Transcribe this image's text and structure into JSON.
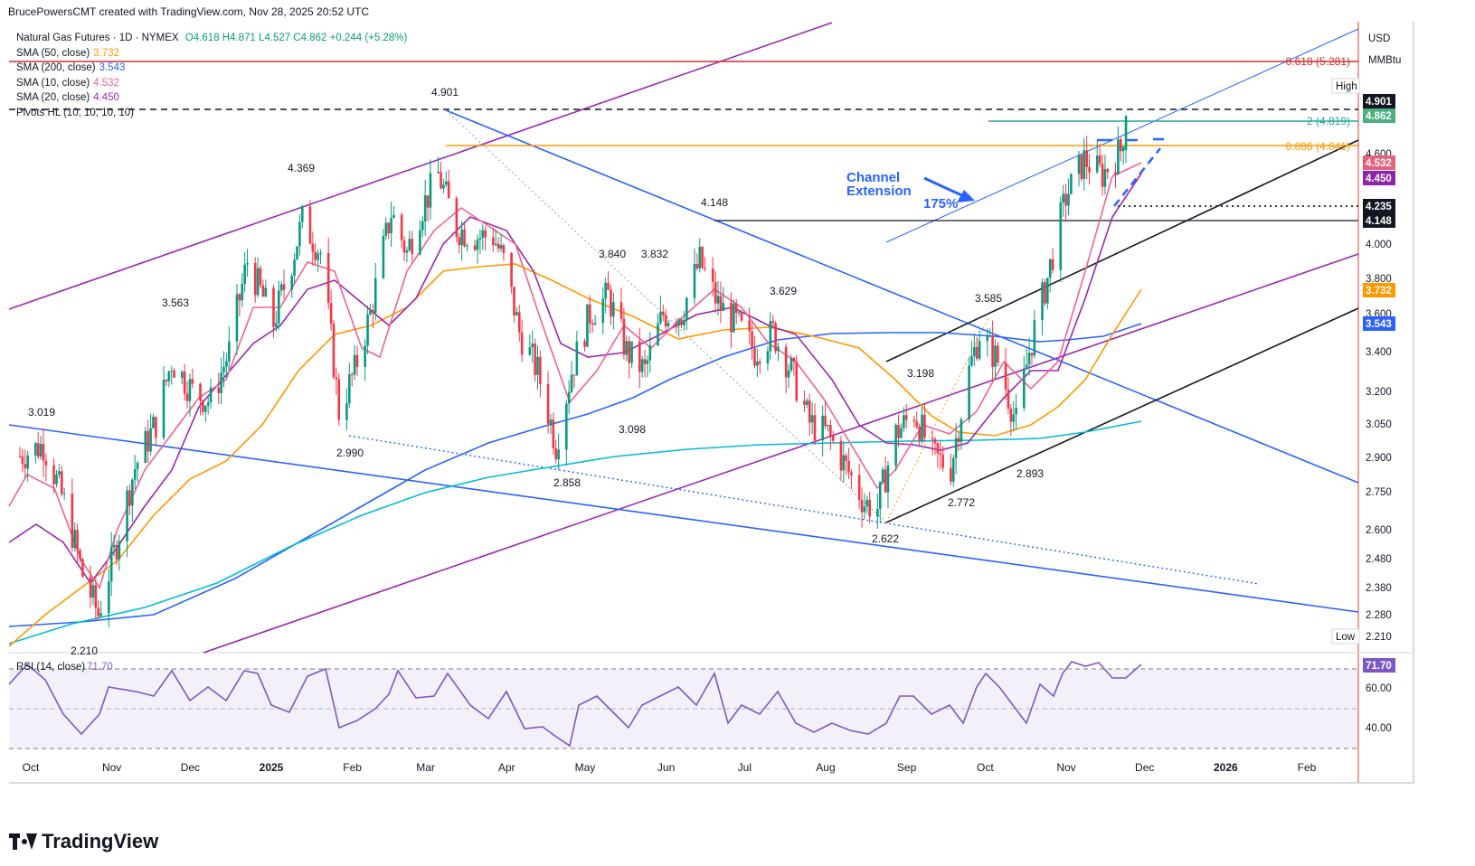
{
  "header": {
    "author_line": "BrucePowersCMT created with TradingView.com, Nov 28, 2025 20:52 UTC"
  },
  "legend": {
    "symbol_line": "Natural Gas Futures · 1D · NYMEX",
    "ohlc": "O4.618 H4.871 L4.527 C4.862 +0.244 (+5.28%)",
    "sma50": {
      "label": "SMA (50, close)",
      "value": "3.732",
      "color": "#ff9800"
    },
    "sma200": {
      "label": "SMA (200, close)",
      "value": "3.543",
      "color": "#2962ff"
    },
    "sma10": {
      "label": "SMA (10, close)",
      "value": "4.532",
      "color": "#f06292"
    },
    "sma20": {
      "label": "SMA (20, close)",
      "value": "4.450",
      "color": "#9c27b0"
    },
    "pivots": "Pivots HL (10, 10, 10, 10)"
  },
  "price_axis": {
    "unit1": "USD",
    "unit2": "MMBtu",
    "ticks": [
      "4.600",
      "4.000",
      "3.800",
      "3.600",
      "3.400",
      "3.200",
      "3.050",
      "2.900",
      "2.750",
      "2.600",
      "2.480",
      "2.380",
      "2.280"
    ],
    "badges": [
      {
        "text": "High",
        "kind": "plain"
      },
      {
        "text": "4.901",
        "kind": "dark",
        "color": "#131722"
      },
      {
        "text": "4.862",
        "kind": "fill",
        "color": "#4caf80"
      },
      {
        "text": "4.532",
        "kind": "fill",
        "color": "#e5607f"
      },
      {
        "text": "4.450",
        "kind": "fill",
        "color": "#8e24aa"
      },
      {
        "text": "4.235",
        "kind": "fill",
        "color": "#131722"
      },
      {
        "text": "4.148",
        "kind": "fill",
        "color": "#131722"
      },
      {
        "text": "3.732",
        "kind": "fill",
        "color": "#ff9800"
      },
      {
        "text": "3.543",
        "kind": "fill",
        "color": "#2962ff"
      },
      {
        "text": "Low",
        "kind": "plain"
      },
      {
        "text": "2.210",
        "kind": "plainval"
      }
    ]
  },
  "rsi": {
    "label": "RSI (14, close)",
    "value": "71.70",
    "ticks": [
      "60.00",
      "40.00"
    ],
    "color": "#7e57c2"
  },
  "time_axis": [
    "Oct",
    "Nov",
    "Dec",
    "2025",
    "Feb",
    "Mar",
    "Apr",
    "May",
    "Jun",
    "Jul",
    "Aug",
    "Sep",
    "Oct",
    "Nov",
    "Dec",
    "2026",
    "Feb"
  ],
  "annotations": {
    "fib_0618": "0.618 (5.281)",
    "fib_2": "2 (4.819)",
    "fib_0886": "0.886 (4.641)",
    "channel": "Channel",
    "extension": "Extension",
    "pct175": "175%"
  },
  "pivot_labels": [
    "4.901",
    "4.369",
    "3.563",
    "3.019",
    "2.210",
    "2.990",
    "4.148",
    "3.840",
    "3.832",
    "3.629",
    "3.098",
    "2.858",
    "3.198",
    "3.585",
    "2.622",
    "2.772",
    "2.893"
  ],
  "brand": "TradingView",
  "chart_data": {
    "type": "candlestick",
    "title": "Natural Gas Futures · 1D · NYMEX",
    "x_range": [
      "2024-10-01",
      "2026-02-28"
    ],
    "ylim": [
      2.21,
      5.3
    ],
    "log_scale": true,
    "ohlc_last": {
      "open": 4.618,
      "high": 4.871,
      "low": 4.527,
      "close": 4.862,
      "change": 0.244,
      "change_pct": 5.28
    },
    "close_path": [
      {
        "date": "2024-10-01",
        "close": 2.9
      },
      {
        "date": "2024-10-10",
        "close": 2.95
      },
      {
        "date": "2024-10-18",
        "close": 2.7
      },
      {
        "date": "2024-10-25",
        "close": 2.42
      },
      {
        "date": "2024-10-31",
        "close": 2.28
      },
      {
        "date": "2024-11-06",
        "close": 2.5
      },
      {
        "date": "2024-11-14",
        "close": 2.85
      },
      {
        "date": "2024-11-22",
        "close": 3.05
      },
      {
        "date": "2024-11-28",
        "close": 3.35
      },
      {
        "date": "2024-12-06",
        "close": 3.2
      },
      {
        "date": "2024-12-13",
        "close": 3.15
      },
      {
        "date": "2024-12-20",
        "close": 3.4
      },
      {
        "date": "2024-12-27",
        "close": 3.9
      },
      {
        "date": "2025-01-06",
        "close": 3.55
      },
      {
        "date": "2025-01-13",
        "close": 3.9
      },
      {
        "date": "2025-01-17",
        "close": 4.15
      },
      {
        "date": "2025-01-24",
        "close": 3.95
      },
      {
        "date": "2025-01-31",
        "close": 3.1
      },
      {
        "date": "2025-02-06",
        "close": 3.3
      },
      {
        "date": "2025-02-12",
        "close": 3.6
      },
      {
        "date": "2025-02-20",
        "close": 4.2
      },
      {
        "date": "2025-02-26",
        "close": 3.95
      },
      {
        "date": "2025-03-03",
        "close": 4.2
      },
      {
        "date": "2025-03-10",
        "close": 4.45
      },
      {
        "date": "2025-03-17",
        "close": 4.1
      },
      {
        "date": "2025-03-24",
        "close": 4.05
      },
      {
        "date": "2025-03-31",
        "close": 4.05
      },
      {
        "date": "2025-04-04",
        "close": 3.9
      },
      {
        "date": "2025-04-10",
        "close": 3.5
      },
      {
        "date": "2025-04-17",
        "close": 3.3
      },
      {
        "date": "2025-04-24",
        "close": 2.95
      },
      {
        "date": "2025-04-30",
        "close": 3.3
      },
      {
        "date": "2025-05-07",
        "close": 3.6
      },
      {
        "date": "2025-05-14",
        "close": 3.7
      },
      {
        "date": "2025-05-21",
        "close": 3.4
      },
      {
        "date": "2025-05-28",
        "close": 3.3
      },
      {
        "date": "2025-06-04",
        "close": 3.6
      },
      {
        "date": "2025-06-11",
        "close": 3.6
      },
      {
        "date": "2025-06-18",
        "close": 3.9
      },
      {
        "date": "2025-06-25",
        "close": 3.65
      },
      {
        "date": "2025-07-02",
        "close": 3.55
      },
      {
        "date": "2025-07-09",
        "close": 3.4
      },
      {
        "date": "2025-07-16",
        "close": 3.5
      },
      {
        "date": "2025-07-23",
        "close": 3.3
      },
      {
        "date": "2025-07-30",
        "close": 3.05
      },
      {
        "date": "2025-08-06",
        "close": 3.0
      },
      {
        "date": "2025-08-13",
        "close": 2.85
      },
      {
        "date": "2025-08-20",
        "close": 2.7
      },
      {
        "date": "2025-08-25",
        "close": 2.68
      },
      {
        "date": "2025-09-01",
        "close": 3.0
      },
      {
        "date": "2025-09-08",
        "close": 3.1
      },
      {
        "date": "2025-09-15",
        "close": 2.9
      },
      {
        "date": "2025-09-22",
        "close": 2.85
      },
      {
        "date": "2025-09-29",
        "close": 3.3
      },
      {
        "date": "2025-10-03",
        "close": 3.5
      },
      {
        "date": "2025-10-10",
        "close": 3.35
      },
      {
        "date": "2025-10-17",
        "close": 3.05
      },
      {
        "date": "2025-10-22",
        "close": 3.4
      },
      {
        "date": "2025-10-29",
        "close": 3.8
      },
      {
        "date": "2025-11-05",
        "close": 4.3
      },
      {
        "date": "2025-11-12",
        "close": 4.55
      },
      {
        "date": "2025-11-19",
        "close": 4.45
      },
      {
        "date": "2025-11-26",
        "close": 4.618
      },
      {
        "date": "2025-11-28",
        "close": 4.862
      }
    ],
    "sma": [
      {
        "name": "SMA (50, close)",
        "last": 3.732
      },
      {
        "name": "SMA (200, close)",
        "last": 3.543
      },
      {
        "name": "SMA (10, close)",
        "last": 4.532
      },
      {
        "name": "SMA (20, close)",
        "last": 4.45
      }
    ],
    "pivot_levels": [
      {
        "date": "2025-03-10",
        "price": 4.901
      },
      {
        "date": "2025-01-21",
        "price": 4.369
      },
      {
        "date": "2024-12-09",
        "price": 3.563
      },
      {
        "date": "2024-10-07",
        "price": 3.019
      },
      {
        "date": "2024-10-29",
        "price": 2.21
      },
      {
        "date": "2025-01-28",
        "price": 2.99
      },
      {
        "date": "2025-06-20",
        "price": 4.148
      },
      {
        "date": "2025-05-22",
        "price": 3.84
      },
      {
        "date": "2025-06-05",
        "price": 3.832
      },
      {
        "date": "2025-07-31",
        "price": 3.629
      },
      {
        "date": "2025-05-27",
        "price": 3.098
      },
      {
        "date": "2025-04-25",
        "price": 2.858
      },
      {
        "date": "2025-09-05",
        "price": 3.198
      },
      {
        "date": "2025-10-03",
        "price": 3.585
      },
      {
        "date": "2025-08-22",
        "price": 2.622
      },
      {
        "date": "2025-09-19",
        "price": 2.772
      },
      {
        "date": "2025-10-24",
        "price": 2.893
      }
    ],
    "fib_levels": [
      {
        "label": "0.618 (5.281)",
        "price": 5.281
      },
      {
        "label": "2 (4.819)",
        "price": 4.819
      },
      {
        "label": "0.886 (4.641)",
        "price": 4.641
      }
    ],
    "horizontal_levels": [
      4.901,
      4.235,
      4.148
    ],
    "rsi": {
      "period": 14,
      "last": 71.7,
      "ylim": [
        30,
        80
      ],
      "band": [
        30,
        70
      ]
    }
  }
}
